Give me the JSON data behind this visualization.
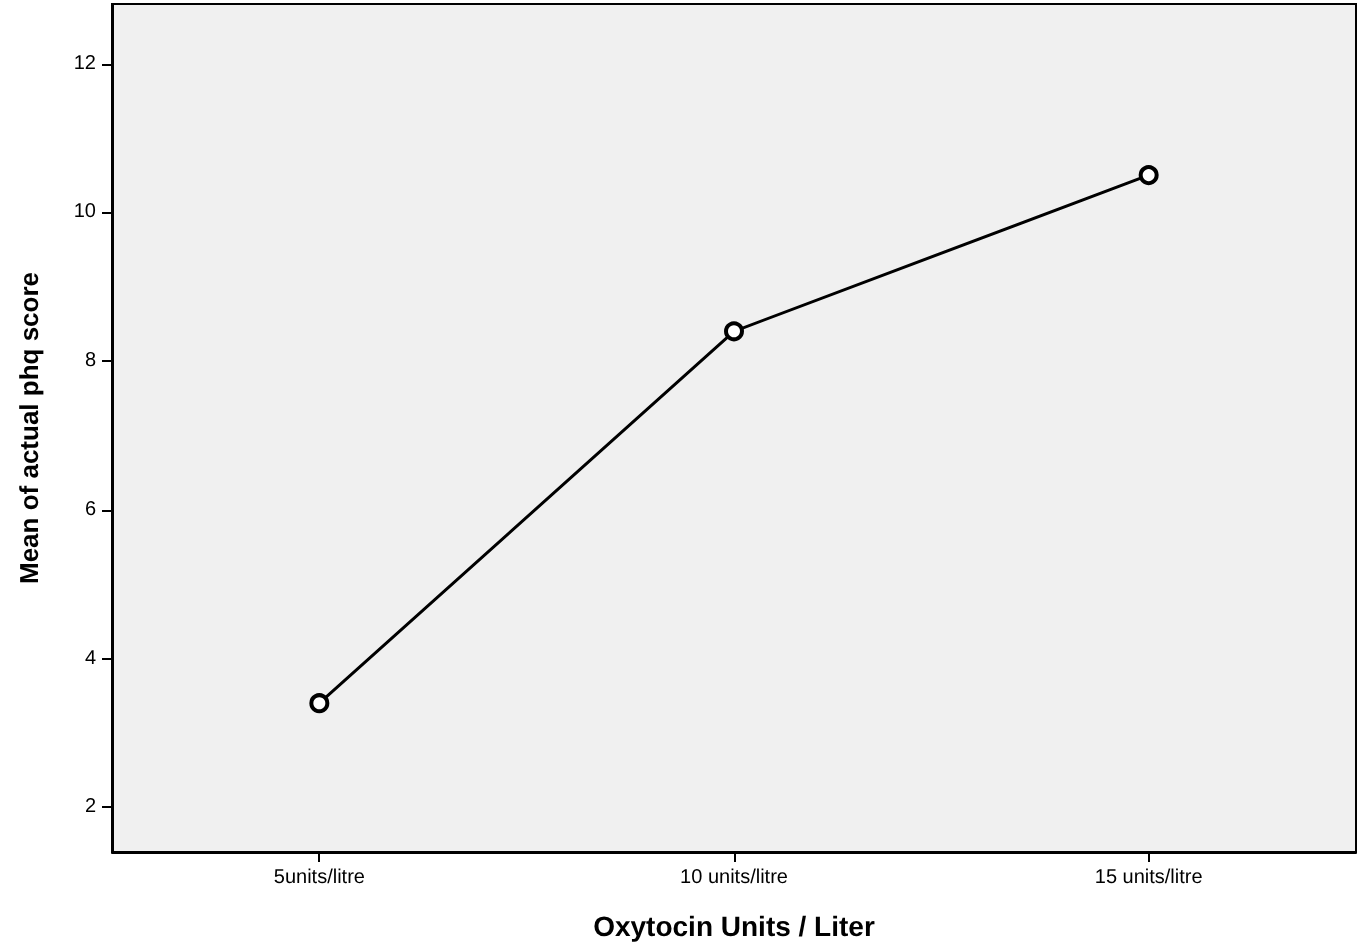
{
  "chart_data": {
    "type": "line",
    "xlabel": "Oxytocin Units / Liter",
    "ylabel": "Mean of actual phq score",
    "categories": [
      "5units/litre",
      "10 units/litre",
      "15 units/litre"
    ],
    "series": [
      {
        "color": "#000000",
        "values": [
          3.4,
          8.4,
          10.5
        ]
      }
    ],
    "ylim": [
      1.4,
      12.8
    ],
    "yticks": [
      2,
      4,
      6,
      8,
      10,
      12
    ],
    "grid": false,
    "marker": "circle",
    "line_style": "solid"
  }
}
